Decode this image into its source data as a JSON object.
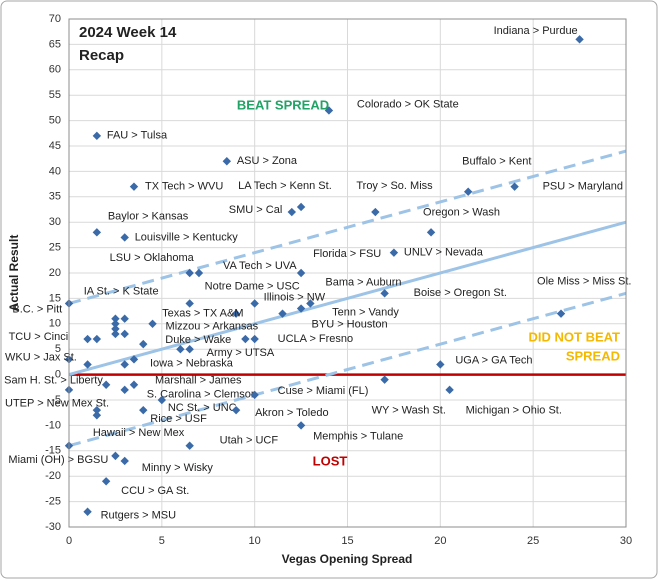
{
  "chart_data": {
    "type": "scatter",
    "title": [
      "2024 Week 14",
      "Recap"
    ],
    "xlabel": "Vegas Opening Spread",
    "ylabel": "Actual Result",
    "annotations": [
      "BEAT SPREAD",
      "DID NOT BEAT",
      "SPREAD",
      "LOST"
    ],
    "color": "#3b6aa8",
    "grid": true,
    "xlim": [
      0,
      30
    ],
    "xticks": [
      0,
      5,
      10,
      15,
      20,
      25,
      30
    ],
    "ylim": [
      -30,
      70
    ],
    "yticks": [
      -30,
      -25,
      -20,
      -15,
      -10,
      -5,
      0,
      5,
      10,
      15,
      20,
      25,
      30,
      35,
      40,
      45,
      50,
      55,
      60,
      65,
      70
    ],
    "x": [
      27.5,
      14,
      1.5,
      8.5,
      3.5,
      21.5,
      24,
      12.5,
      12,
      16.5,
      1.5,
      19.5,
      3,
      17.5,
      6.5,
      7,
      12.5,
      13,
      17,
      6.5,
      10,
      12.5,
      11.5,
      9,
      3,
      2.5,
      2.5,
      26.5,
      4.5,
      4,
      1,
      1.5,
      10,
      9.5,
      6.5,
      6,
      3.5,
      3,
      0,
      1,
      20,
      2,
      3.5,
      3,
      10,
      17,
      20.5,
      0,
      5,
      9,
      4,
      1.5,
      1.5,
      12.5,
      6.5,
      0,
      2.5,
      3,
      2,
      1,
      0,
      2.5,
      2.5,
      3
    ],
    "y": [
      66,
      52,
      47,
      42,
      37,
      36,
      37,
      33,
      32,
      32,
      28,
      28,
      27,
      24,
      20,
      20,
      20,
      14,
      16,
      14,
      14,
      13,
      12,
      12,
      11,
      11,
      10,
      12,
      10,
      6,
      7,
      7,
      7,
      7,
      5,
      5,
      3,
      2,
      3,
      2,
      2,
      -2,
      -2,
      -3,
      -4,
      -1,
      -3,
      -3,
      -5,
      -7,
      -7,
      -7,
      -8,
      -10,
      -14,
      -14,
      -16,
      -17,
      -21,
      -27,
      14,
      9,
      8,
      8
    ],
    "labels": [
      "Indiana > Purdue",
      "Colorado > OK State",
      "FAU > Tulsa",
      "ASU > Zona",
      "TX Tech > WVU",
      "Buffalo > Kent",
      "PSU > Maryland",
      "LA Tech > Kenn St.",
      "SMU > Cal",
      "Troy > So. Miss",
      "Baylor > Kansas",
      "Oregon > Wash",
      "Louisville > Kentucky",
      "UNLV > Nevada",
      "LSU > Oklahoma",
      "VA Tech > UVA",
      "Florida > FSU",
      "Bama > Auburn",
      "Boise > Oregon St.",
      "Notre Dame > USC",
      "Illinois > NW",
      "Tenn > Vandy",
      "BYU > Houston",
      "Texas > TX A&M",
      "IA St. > K State",
      null,
      "B.C. > Pitt",
      "Ole Miss > Miss St.",
      "Mizzou > Arkansas",
      "Duke > Wake",
      "TCU > Cinci",
      null,
      "UCLA > Fresno",
      null,
      "Army > UTSA",
      null,
      "Iowa > Nebraska",
      null,
      "WKU > Jax St.",
      null,
      "UGA > GA Tech",
      "Sam H. St. > Liberty",
      "Marshall > James",
      "S. Carolina > Clemson",
      "Cuse > Miami (FL)",
      "WY > Wash St.",
      "Michigan > Ohio St.",
      "UTEP > New Mex St.",
      "NC St. > UNC",
      "Akron > Toledo",
      "Rice > USF",
      "Hawaii > New Mex",
      null,
      "Memphis > Tulane",
      "Utah > UCF",
      null,
      "Miami (OH) > BGSU",
      "Minny > Wisky",
      "CCU > GA St.",
      "Rutgers > MSU",
      null,
      null,
      null,
      null
    ],
    "lines": [
      {
        "x": [
          0,
          30
        ],
        "y": [
          14,
          44
        ],
        "dashed": true,
        "color": "#9dc3e6"
      },
      {
        "x": [
          0,
          30
        ],
        "y": [
          0,
          30
        ],
        "dashed": false,
        "color": "#9dc3e6"
      },
      {
        "x": [
          0,
          30
        ],
        "y": [
          -14,
          16
        ],
        "dashed": true,
        "color": "#9dc3e6"
      }
    ],
    "zero_line_color": "#c00000"
  }
}
